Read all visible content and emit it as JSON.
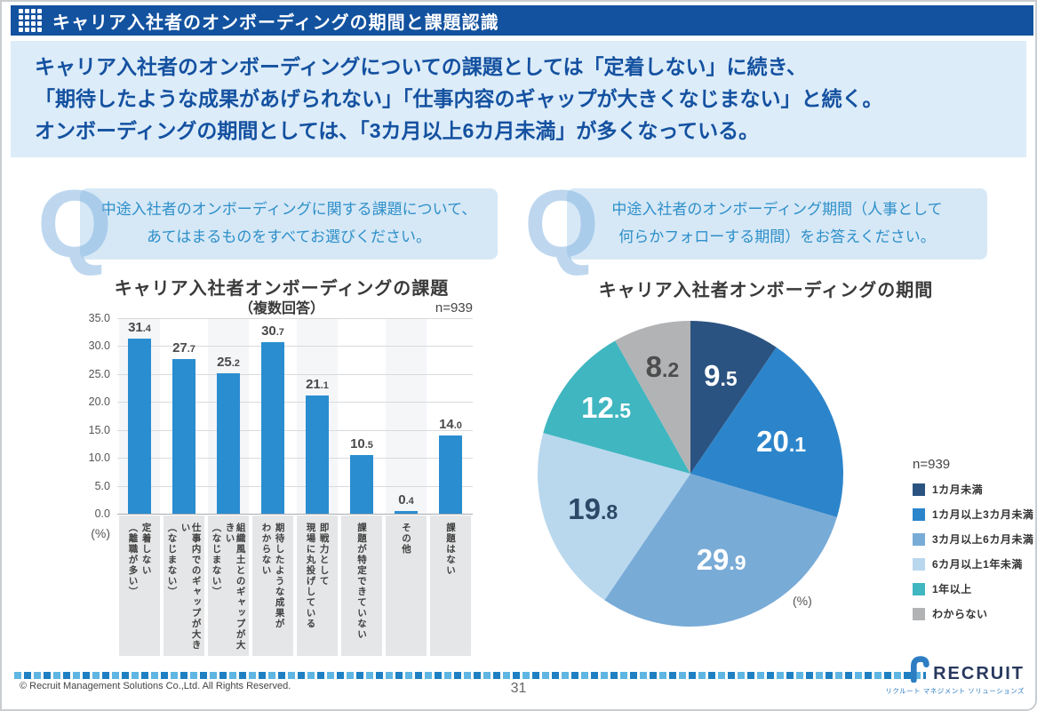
{
  "header": {
    "title": "キャリア入社者のオンボーディングの期間と課題認識"
  },
  "summary": {
    "lines": [
      "キャリア入社者のオンボーディングについての課題としては「定着しない」に続き、",
      "「期待したような成果があげられない」「仕事内容のギャップが大きくなじまない」と続く。",
      "オンボーディングの期間としては、「3カ月以上6カ月未満」が多くなっている。"
    ]
  },
  "questions": [
    {
      "mark": "Q",
      "lines": [
        "中途入社者のオンボーディングに関する課題について、",
        "あてはまるものをすべてお選びください。"
      ]
    },
    {
      "mark": "Q",
      "lines": [
        "中途入社者のオンボーディング期間（人事として",
        "何らかフォローする期間）をお答えください。"
      ]
    }
  ],
  "chart_data": [
    {
      "type": "bar",
      "title": "キャリア入社者オンボーディングの課題",
      "subtitle": "（複数回答）",
      "n_label": "n=939",
      "unit_label": "(%)",
      "categories": [
        [
          "定着しない",
          "（離職が多い）"
        ],
        [
          "仕事内でのギャップが大きい",
          "（なじまない）"
        ],
        [
          "組織風土とのギャップが大きい",
          "（なじまない）"
        ],
        [
          "期待したような成果が",
          "わからない"
        ],
        [
          "即戦力として",
          "現場に丸投げしている"
        ],
        [
          "課題が特定できていない"
        ],
        [
          "その他"
        ],
        [
          "課題はない"
        ]
      ],
      "values": [
        31.4,
        27.7,
        25.2,
        30.7,
        21.1,
        10.5,
        0.4,
        14.0
      ],
      "ylim": [
        0,
        35
      ],
      "yticks": [
        "35.0",
        "30.0",
        "25.0",
        "20.0",
        "15.0",
        "10.0",
        "5.0",
        "0.0"
      ],
      "bar_color": "#2a8dd0",
      "grid": true,
      "legend_position": "none"
    },
    {
      "type": "pie",
      "title": "キャリア入社者オンボーディングの期間",
      "n_label": "n=939",
      "unit_label": "(%)",
      "legend_position": "right",
      "slices": [
        {
          "label": "1カ月未満",
          "value": 9.5,
          "color": "#2b5381",
          "text_color": "#ffffff"
        },
        {
          "label": "1カ月以上3カ月未満",
          "value": 20.1,
          "color": "#2c85cb",
          "text_color": "#ffffff"
        },
        {
          "label": "3カ月以上6カ月未満",
          "value": 29.9,
          "color": "#79abd7",
          "text_color": "#ffffff"
        },
        {
          "label": "6カ月以上1年未満",
          "value": 19.8,
          "color": "#b9d8ee",
          "text_color": "#2c4a68"
        },
        {
          "label": "1年以上",
          "value": 12.5,
          "color": "#3fb6c0",
          "text_color": "#ffffff"
        },
        {
          "label": "わからない",
          "value": 8.2,
          "color": "#b2b3b5",
          "text_color": "#4d4d4d"
        }
      ]
    }
  ],
  "footer": {
    "copyright": "© Recruit Management Solutions Co.,Ltd. All Rights Reserved.",
    "page_number": "31",
    "logo_text": "RECRUIT",
    "logo_subtext": "リクルート マネジメント ソリューションズ"
  }
}
